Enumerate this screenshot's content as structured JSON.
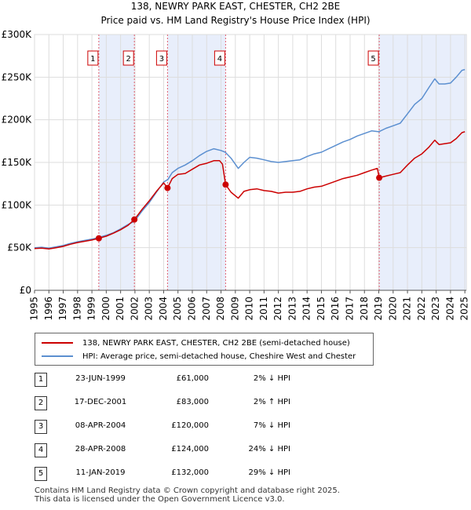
{
  "chart_data": {
    "type": "line",
    "title": "138, NEWRY PARK EAST, CHESTER, CH2 2BE",
    "subtitle": "Price paid vs. HM Land Registry's House Price Index (HPI)",
    "xlabel": "",
    "ylabel": "",
    "xlim": [
      1995,
      2025.1
    ],
    "ylim": [
      0,
      300000
    ],
    "y_ticks": [
      {
        "value": 0,
        "label": "£0"
      },
      {
        "value": 50000,
        "label": "£50K"
      },
      {
        "value": 100000,
        "label": "£100K"
      },
      {
        "value": 150000,
        "label": "£150K"
      },
      {
        "value": 200000,
        "label": "£200K"
      },
      {
        "value": 250000,
        "label": "£250K"
      },
      {
        "value": 300000,
        "label": "£300K"
      }
    ],
    "x_ticks": [
      "1995",
      "1996",
      "1997",
      "1998",
      "1999",
      "2000",
      "2001",
      "2002",
      "2003",
      "2004",
      "2005",
      "2006",
      "2007",
      "2008",
      "2009",
      "2010",
      "2011",
      "2012",
      "2013",
      "2014",
      "2015",
      "2016",
      "2017",
      "2018",
      "2019",
      "2020",
      "2021",
      "2022",
      "2023",
      "2024",
      "2025"
    ],
    "grid": true,
    "series": [
      {
        "name": "138, NEWRY PARK EAST, CHESTER, CH2 2BE (semi-detached house)",
        "color": "#cc0000",
        "points": [
          [
            1995.0,
            49000
          ],
          [
            1995.5,
            49500
          ],
          [
            1996.0,
            48500
          ],
          [
            1996.5,
            50000
          ],
          [
            1997.0,
            51500
          ],
          [
            1997.5,
            54000
          ],
          [
            1998.0,
            56000
          ],
          [
            1998.5,
            57500
          ],
          [
            1999.0,
            59000
          ],
          [
            1999.48,
            61000
          ],
          [
            2000.0,
            63500
          ],
          [
            2000.5,
            67000
          ],
          [
            2001.0,
            71000
          ],
          [
            2001.5,
            76000
          ],
          [
            2001.96,
            83000
          ],
          [
            2002.5,
            95000
          ],
          [
            2003.0,
            105000
          ],
          [
            2003.5,
            116000
          ],
          [
            2004.0,
            126000
          ],
          [
            2004.27,
            120000
          ],
          [
            2004.6,
            131000
          ],
          [
            2005.0,
            136000
          ],
          [
            2005.5,
            137000
          ],
          [
            2006.0,
            142000
          ],
          [
            2006.5,
            147000
          ],
          [
            2007.0,
            149000
          ],
          [
            2007.5,
            152000
          ],
          [
            2007.9,
            152000
          ],
          [
            2008.1,
            148000
          ],
          [
            2008.32,
            124000
          ],
          [
            2008.7,
            115000
          ],
          [
            2009.2,
            108000
          ],
          [
            2009.6,
            116000
          ],
          [
            2010.0,
            118000
          ],
          [
            2010.5,
            119000
          ],
          [
            2011.0,
            117000
          ],
          [
            2011.5,
            116000
          ],
          [
            2012.0,
            114000
          ],
          [
            2012.5,
            115000
          ],
          [
            2013.0,
            115000
          ],
          [
            2013.5,
            116000
          ],
          [
            2014.0,
            119000
          ],
          [
            2014.5,
            121000
          ],
          [
            2015.0,
            122000
          ],
          [
            2015.5,
            125000
          ],
          [
            2016.0,
            128000
          ],
          [
            2016.5,
            131000
          ],
          [
            2017.0,
            133000
          ],
          [
            2017.5,
            135000
          ],
          [
            2018.0,
            138000
          ],
          [
            2018.5,
            141000
          ],
          [
            2018.9,
            143000
          ],
          [
            2019.03,
            132000
          ],
          [
            2019.5,
            134000
          ],
          [
            2020.0,
            136000
          ],
          [
            2020.5,
            138000
          ],
          [
            2021.0,
            147000
          ],
          [
            2021.5,
            155000
          ],
          [
            2022.0,
            160000
          ],
          [
            2022.5,
            168000
          ],
          [
            2022.9,
            176000
          ],
          [
            2023.2,
            171000
          ],
          [
            2023.6,
            172000
          ],
          [
            2024.0,
            173000
          ],
          [
            2024.4,
            178000
          ],
          [
            2024.8,
            185000
          ],
          [
            2025.0,
            186000
          ]
        ]
      },
      {
        "name": "HPI: Average price, semi-detached house, Cheshire West and Chester",
        "color": "#5b8fd0",
        "points": [
          [
            1995.0,
            50000
          ],
          [
            1995.5,
            50500
          ],
          [
            1996.0,
            49500
          ],
          [
            1996.5,
            51000
          ],
          [
            1997.0,
            52500
          ],
          [
            1997.5,
            55000
          ],
          [
            1998.0,
            57000
          ],
          [
            1998.5,
            58500
          ],
          [
            1999.0,
            60000
          ],
          [
            1999.48,
            62000
          ],
          [
            2000.0,
            64500
          ],
          [
            2000.5,
            67500
          ],
          [
            2001.0,
            72000
          ],
          [
            2001.5,
            77000
          ],
          [
            2001.96,
            81000
          ],
          [
            2002.5,
            93000
          ],
          [
            2003.0,
            103000
          ],
          [
            2003.5,
            115000
          ],
          [
            2004.0,
            127000
          ],
          [
            2004.3,
            130000
          ],
          [
            2004.6,
            138000
          ],
          [
            2005.0,
            143000
          ],
          [
            2005.5,
            147000
          ],
          [
            2006.0,
            152000
          ],
          [
            2006.5,
            158000
          ],
          [
            2007.0,
            163000
          ],
          [
            2007.5,
            166000
          ],
          [
            2008.0,
            164000
          ],
          [
            2008.3,
            162000
          ],
          [
            2008.7,
            155000
          ],
          [
            2009.2,
            143000
          ],
          [
            2009.6,
            150000
          ],
          [
            2010.0,
            156000
          ],
          [
            2010.5,
            155000
          ],
          [
            2011.0,
            153000
          ],
          [
            2011.5,
            151000
          ],
          [
            2012.0,
            150000
          ],
          [
            2012.5,
            151000
          ],
          [
            2013.0,
            152000
          ],
          [
            2013.5,
            153000
          ],
          [
            2014.0,
            157000
          ],
          [
            2014.5,
            160000
          ],
          [
            2015.0,
            162000
          ],
          [
            2015.5,
            166000
          ],
          [
            2016.0,
            170000
          ],
          [
            2016.5,
            174000
          ],
          [
            2017.0,
            177000
          ],
          [
            2017.5,
            181000
          ],
          [
            2018.0,
            184000
          ],
          [
            2018.5,
            187000
          ],
          [
            2019.0,
            186000
          ],
          [
            2019.5,
            190000
          ],
          [
            2020.0,
            193000
          ],
          [
            2020.5,
            196000
          ],
          [
            2021.0,
            207000
          ],
          [
            2021.5,
            218000
          ],
          [
            2022.0,
            225000
          ],
          [
            2022.5,
            238000
          ],
          [
            2022.9,
            248000
          ],
          [
            2023.2,
            242000
          ],
          [
            2023.6,
            242000
          ],
          [
            2024.0,
            243000
          ],
          [
            2024.4,
            250000
          ],
          [
            2024.8,
            258000
          ],
          [
            2025.0,
            259000
          ]
        ]
      }
    ],
    "sales": [
      {
        "label": "1",
        "x": 1999.48,
        "price": 61000
      },
      {
        "label": "2",
        "x": 2001.96,
        "price": 83000
      },
      {
        "label": "3",
        "x": 2004.27,
        "price": 120000
      },
      {
        "label": "4",
        "x": 2008.32,
        "price": 124000
      },
      {
        "label": "5",
        "x": 2019.03,
        "price": 132000
      }
    ],
    "shaded_ranges": [
      [
        1999.48,
        2001.96
      ],
      [
        2004.27,
        2008.32
      ],
      [
        2019.03,
        2025.1
      ]
    ]
  },
  "legend": {
    "items": [
      {
        "label": "138, NEWRY PARK EAST, CHESTER, CH2 2BE (semi-detached house)",
        "color": "#cc0000"
      },
      {
        "label": "HPI: Average price, semi-detached house, Cheshire West and Chester",
        "color": "#5b8fd0"
      }
    ]
  },
  "transactions": [
    {
      "num": "1",
      "date": "23-JUN-1999",
      "price": "£61,000",
      "hpi": "2% ↓ HPI"
    },
    {
      "num": "2",
      "date": "17-DEC-2001",
      "price": "£83,000",
      "hpi": "2% ↑ HPI"
    },
    {
      "num": "3",
      "date": "08-APR-2004",
      "price": "£120,000",
      "hpi": "7% ↓ HPI"
    },
    {
      "num": "4",
      "date": "28-APR-2008",
      "price": "£124,000",
      "hpi": "24% ↓ HPI"
    },
    {
      "num": "5",
      "date": "11-JAN-2019",
      "price": "£132,000",
      "hpi": "29% ↓ HPI"
    }
  ],
  "footer": {
    "line1": "Contains HM Land Registry data © Crown copyright and database right 2025.",
    "line2": "This data is licensed under the Open Government Licence v3.0."
  }
}
